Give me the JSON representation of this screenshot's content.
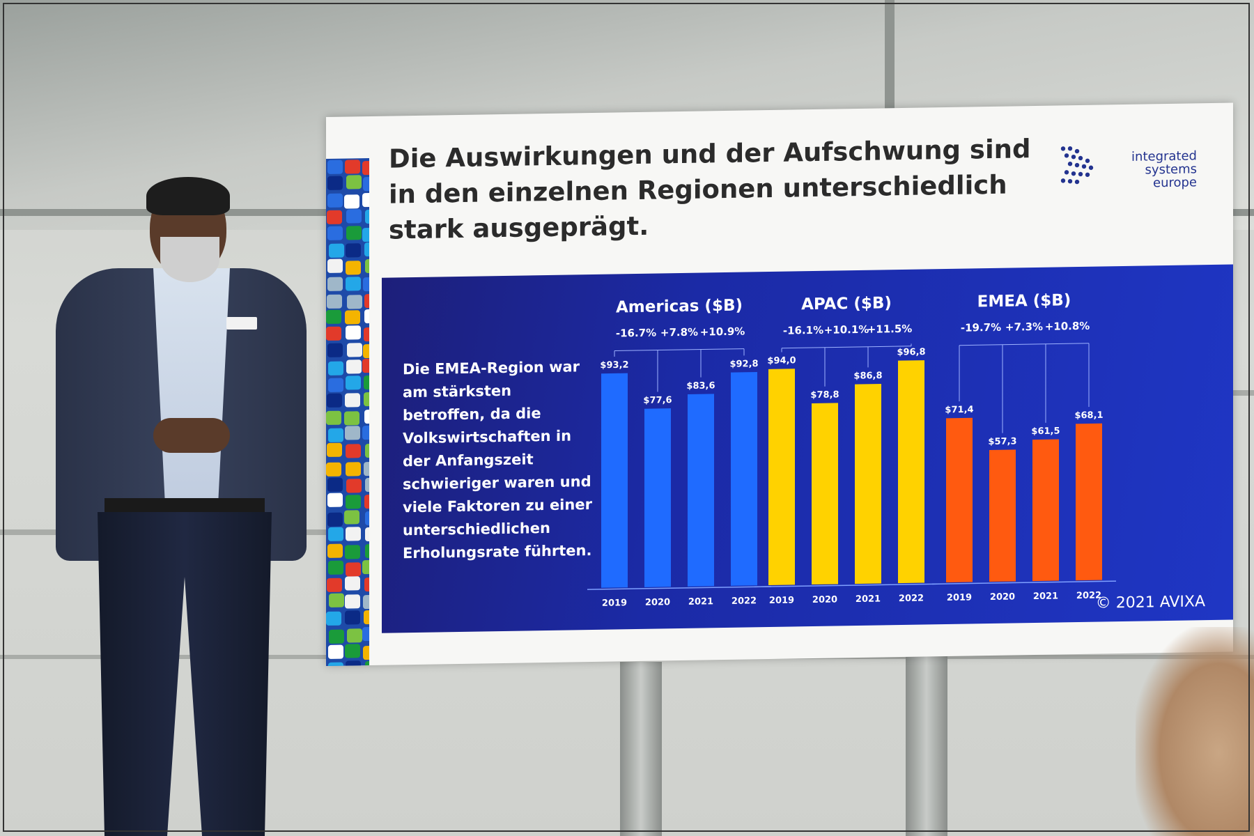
{
  "slide": {
    "title": "Die Auswirkungen und der Aufschwung sind in den einzelnen Regionen unterschiedlich stark ausgeprägt.",
    "logo_lines": [
      "integrated",
      "systems",
      "europe"
    ],
    "body_text": "Die EMEA-Region war am stärksten betroffen, da die Volkswirtschaften in der Anfangszeit schwieriger waren und viele Faktoren zu einer unterschiedlichen Erholungsrate führten.",
    "copyright": "© 2021 AVIXA"
  },
  "chart_data": [
    {
      "type": "bar",
      "title": "Americas ($B)",
      "categories": [
        "2019",
        "2020",
        "2021",
        "2022"
      ],
      "values": [
        93.2,
        77.6,
        83.6,
        92.8
      ],
      "value_labels": [
        "$93,2",
        "$77,6",
        "$83,6",
        "$92,8"
      ],
      "growth_labels": [
        "-16.7%",
        "+7.8%",
        "+10.9%"
      ],
      "color": "#1f6bff"
    },
    {
      "type": "bar",
      "title": "APAC ($B)",
      "categories": [
        "2019",
        "2020",
        "2021",
        "2022"
      ],
      "values": [
        94.0,
        78.8,
        86.8,
        96.8
      ],
      "value_labels": [
        "$94,0",
        "$78,8",
        "$86,8",
        "$96,8"
      ],
      "growth_labels": [
        "-16.1%",
        "+10.1%",
        "+11.5%"
      ],
      "color": "#ffd200"
    },
    {
      "type": "bar",
      "title": "EMEA ($B)",
      "categories": [
        "2019",
        "2020",
        "2021",
        "2022"
      ],
      "values": [
        71.4,
        57.3,
        61.5,
        68.1
      ],
      "value_labels": [
        "$71,4",
        "$57,3",
        "$61,5",
        "$68,1"
      ],
      "growth_labels": [
        "-19.7%",
        "+7.3%",
        "+10.8%"
      ],
      "color": "#ff5a10"
    }
  ],
  "colors": {
    "panel": "#1b2aa6",
    "title_text": "#2b2b2b",
    "logo_blue": "#23338f"
  }
}
